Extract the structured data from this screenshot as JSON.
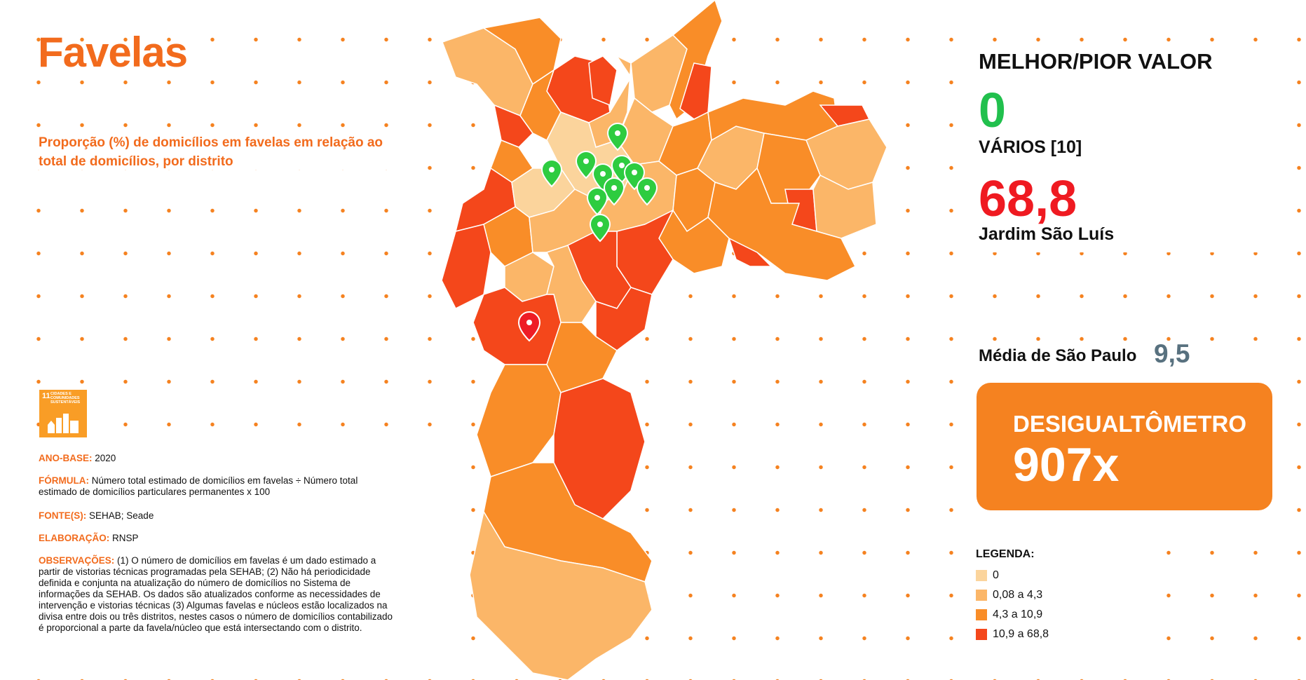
{
  "header": {
    "title": "Favelas",
    "subtitle": "Proporção (%) de domicílios em favelas em relação ao total de domicílios, por distrito"
  },
  "sdg": {
    "number": "11",
    "text": "CIDADES E COMUNIDADES SUSTENTÁVEIS",
    "icon": "city-buildings-icon",
    "color": "#f99d26"
  },
  "meta": {
    "ano_base_label": "ANO-BASE:",
    "ano_base_value": "2020",
    "formula_label": "FÓRMULA:",
    "formula_value": "Número total estimado de domicílios em favelas ÷ Número total estimado de domicílios particulares permanentes x 100",
    "fontes_label": "FONTE(S):",
    "fontes_value": "SEHAB; Seade",
    "elaboracao_label": "ELABORAÇÃO:",
    "elaboracao_value": "RNSP",
    "observacoes_label": "OBSERVAÇÕES:",
    "observacoes_value": "(1) O número de domicílios em favelas é um dado estimado a partir de vistorias técnicas programadas pela SEHAB; (2) Não há periodicidade definida e conjunta na atualização do número de domicílios no Sistema de informações da SEHAB. Os dados são atualizados conforme as necessidades de intervenção e vistorias técnicas (3) Algumas favelas e núcleos estão localizados na divisa entre dois ou três distritos, nestes casos o número de domicílios contabilizado é proporcional a parte da favela/núcleo que está intersectando com o distrito."
  },
  "stats": {
    "title": "MELHOR/PIOR VALOR",
    "best_value": "0",
    "best_label": "VÁRIOS [10]",
    "worst_value": "68,8",
    "worst_label": "Jardim São Luís",
    "average_label": "Média de São Paulo",
    "average_value": "9,5",
    "inequality_label": "DESIGUALTÔMETRO",
    "inequality_value": "907x"
  },
  "legend": {
    "title": "LEGENDA:",
    "items": [
      {
        "label": "0",
        "color": "#fbd49c"
      },
      {
        "label": "0,08 a 4,3",
        "color": "#fbb668"
      },
      {
        "label": "4,3 a 10,9",
        "color": "#f98d28"
      },
      {
        "label": "10,9 a 68,8",
        "color": "#f4471b"
      }
    ]
  },
  "colors": {
    "accent": "#f26b1d",
    "best": "#21c04d",
    "worst": "#ef1a21",
    "average": "#58717f",
    "best_marker": "#2ecc40",
    "worst_marker": "#ee1c25",
    "marker_icons": "map-pin-icon"
  }
}
